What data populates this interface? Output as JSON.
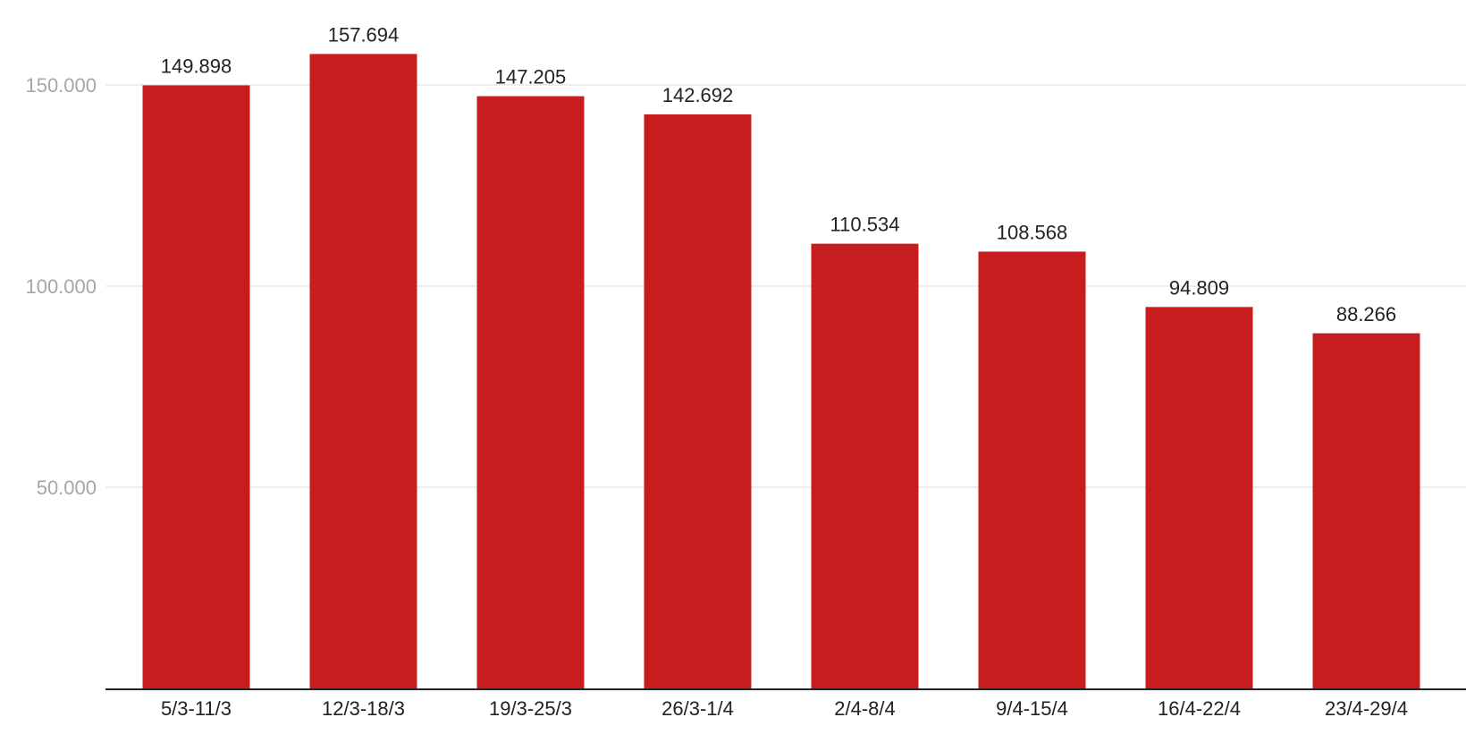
{
  "chart_data": {
    "type": "bar",
    "title": "",
    "xlabel": "",
    "ylabel": "",
    "categories": [
      "5/3-11/3",
      "12/3-18/3",
      "19/3-25/3",
      "26/3-1/4",
      "2/4-8/4",
      "9/4-15/4",
      "16/4-22/4",
      "23/4-29/4"
    ],
    "values": [
      149898,
      157694,
      147205,
      142692,
      110534,
      108568,
      94809,
      88266
    ],
    "value_labels": [
      "149.898",
      "157.694",
      "147.205",
      "142.692",
      "110.534",
      "108.568",
      "94.809",
      "88.266"
    ],
    "ylim": [
      0,
      160000
    ],
    "yticks": [
      50000,
      100000,
      150000
    ],
    "ytick_labels": [
      "50.000",
      "100.000",
      "150.000"
    ],
    "grid": true,
    "legend": "none",
    "bar_color": "#c81d1f"
  }
}
